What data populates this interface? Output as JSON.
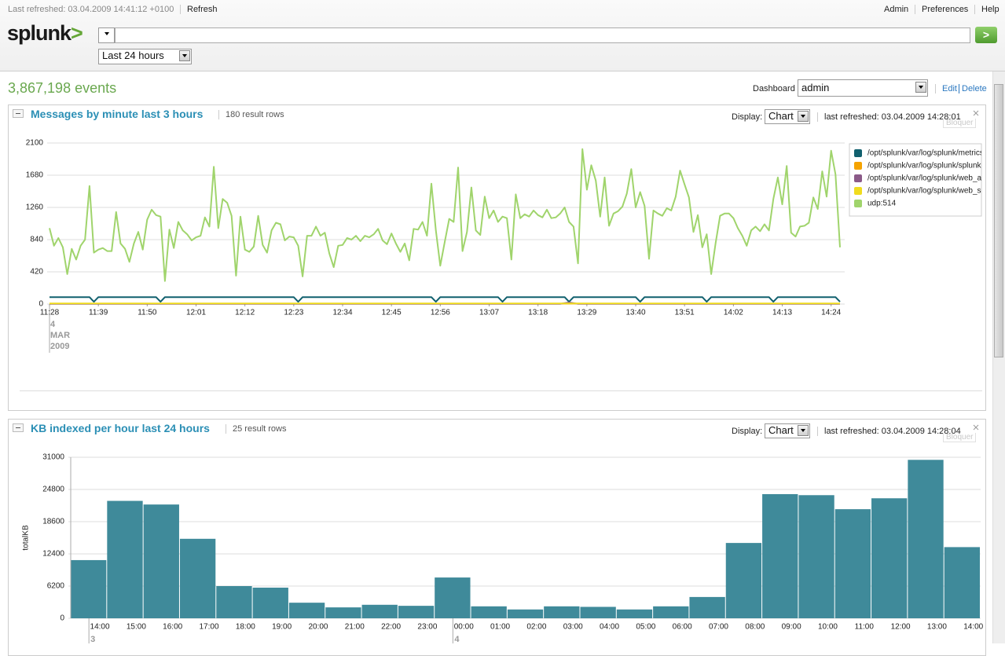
{
  "header": {
    "last_refreshed": "Last refreshed: 03.04.2009 14:41:12 +0100",
    "refresh": "Refresh",
    "menu": [
      "Admin",
      "Preferences",
      "Help"
    ],
    "logo": {
      "text": "splunk",
      "mark": ">"
    },
    "search_button": ">",
    "time_range": "Last 24 hours"
  },
  "events": "3,867,198 events",
  "dashboard": {
    "label": "Dashboard",
    "selected": "admin",
    "edit": "Edit",
    "delete": "Delete"
  },
  "panels": [
    {
      "title": "Messages by minute last 3 hours",
      "rows": "180 result rows",
      "display_label": "Display:",
      "display": "Chart",
      "refreshed": "last refreshed: 03.04.2009 14:28:01",
      "lock": "Bloquer"
    },
    {
      "title": "KB indexed per hour last 24 hours",
      "rows": "25 result rows",
      "display_label": "Display:",
      "display": "Chart",
      "refreshed": "last refreshed: 03.04.2009 14:28:04",
      "lock": "Bloquer"
    }
  ],
  "chart_data": [
    {
      "type": "line",
      "xlim": [
        0,
        178
      ],
      "xticks": [
        {
          "value": 0,
          "label": "11:28"
        },
        {
          "value": 11,
          "label": "11:39"
        },
        {
          "value": 22,
          "label": "11:50"
        },
        {
          "value": 33,
          "label": "12:01"
        },
        {
          "value": 44,
          "label": "12:12"
        },
        {
          "value": 55,
          "label": "12:23"
        },
        {
          "value": 66,
          "label": "12:34"
        },
        {
          "value": 77,
          "label": "12:45"
        },
        {
          "value": 88,
          "label": "12:56"
        },
        {
          "value": 99,
          "label": "13:07"
        },
        {
          "value": 110,
          "label": "13:18"
        },
        {
          "value": 121,
          "label": "13:29"
        },
        {
          "value": 132,
          "label": "13:40"
        },
        {
          "value": 143,
          "label": "13:51"
        },
        {
          "value": 154,
          "label": "14:02"
        },
        {
          "value": 165,
          "label": "14:13"
        },
        {
          "value": 176,
          "label": "14:24"
        }
      ],
      "date_label": [
        "4",
        "MAR",
        "2009"
      ],
      "ylim": [
        0,
        2100
      ],
      "yticks": [
        0,
        420,
        840,
        1260,
        1680,
        2100
      ],
      "grid": true,
      "legend": "right",
      "series": [
        {
          "name": "/opt/splunk/var/log/splunk/metrics",
          "color": "#11606e",
          "x": [
            0,
            9,
            10,
            11,
            24,
            25,
            26,
            55,
            56,
            57,
            86,
            87,
            88,
            101,
            102,
            103,
            116,
            117,
            118,
            132,
            133,
            134,
            147,
            148,
            149,
            162,
            163,
            164,
            177,
            178
          ],
          "values": [
            90,
            90,
            30,
            90,
            90,
            30,
            90,
            90,
            30,
            90,
            90,
            30,
            90,
            90,
            30,
            90,
            90,
            30,
            90,
            90,
            30,
            90,
            90,
            30,
            90,
            90,
            30,
            90,
            90,
            30
          ]
        },
        {
          "name": "/opt/splunk/var/log/splunk/splunk",
          "color": "#f5a300",
          "x": [
            0,
            178
          ],
          "values": [
            5,
            5
          ]
        },
        {
          "name": "/opt/splunk/var/log/splunk/web_a",
          "color": "#8b5a88",
          "x": [
            0,
            115,
            117,
            119,
            178
          ],
          "values": [
            2,
            2,
            20,
            2,
            2
          ]
        },
        {
          "name": "/opt/splunk/var/log/splunk/web_s",
          "color": "#f0dc1e",
          "x": [
            0,
            178
          ],
          "values": [
            8,
            8
          ]
        },
        {
          "name": "udp:514",
          "color": "#a0d46c",
          "x": [
            0,
            1,
            2,
            3,
            4,
            5,
            6,
            7,
            8,
            9,
            10,
            11,
            12,
            13,
            14,
            15,
            16,
            17,
            18,
            19,
            20,
            21,
            22,
            23,
            24,
            25,
            26,
            27,
            28,
            29,
            30,
            31,
            32,
            33,
            34,
            35,
            36,
            37,
            38,
            39,
            40,
            41,
            42,
            43,
            44,
            45,
            46,
            47,
            48,
            49,
            50,
            51,
            52,
            53,
            54,
            55,
            56,
            57,
            58,
            59,
            60,
            61,
            62,
            63,
            64,
            65,
            66,
            67,
            68,
            69,
            70,
            71,
            72,
            73,
            74,
            75,
            76,
            77,
            78,
            79,
            80,
            81,
            82,
            83,
            84,
            85,
            86,
            87,
            88,
            89,
            90,
            91,
            92,
            93,
            94,
            95,
            96,
            97,
            98,
            99,
            100,
            101,
            102,
            103,
            104,
            105,
            106,
            107,
            108,
            109,
            110,
            111,
            112,
            113,
            114,
            115,
            116,
            117,
            118,
            119,
            120,
            121,
            122,
            123,
            124,
            125,
            126,
            127,
            128,
            129,
            130,
            131,
            132,
            133,
            134,
            135,
            136,
            137,
            138,
            139,
            140,
            141,
            142,
            143,
            144,
            145,
            146,
            147,
            148,
            149,
            150,
            151,
            152,
            153,
            154,
            155,
            156,
            157,
            158,
            159,
            160,
            161,
            162,
            163,
            164,
            165,
            166,
            167,
            168,
            169,
            170,
            171,
            172,
            173,
            174,
            175,
            176,
            177,
            178
          ],
          "values": [
            990,
            760,
            860,
            740,
            390,
            720,
            580,
            760,
            840,
            1540,
            670,
            710,
            730,
            690,
            690,
            1200,
            790,
            720,
            550,
            790,
            940,
            710,
            1100,
            1230,
            1160,
            1140,
            300,
            970,
            730,
            1070,
            960,
            910,
            830,
            870,
            890,
            1130,
            1010,
            1790,
            990,
            1370,
            1320,
            1150,
            370,
            1140,
            710,
            680,
            750,
            1150,
            770,
            670,
            960,
            1060,
            1040,
            830,
            880,
            870,
            760,
            360,
            890,
            890,
            1010,
            890,
            930,
            660,
            480,
            760,
            770,
            860,
            840,
            890,
            820,
            890,
            870,
            910,
            980,
            830,
            780,
            920,
            790,
            680,
            790,
            570,
            980,
            970,
            1070,
            890,
            1570,
            960,
            500,
            810,
            1110,
            1070,
            1780,
            690,
            940,
            1520,
            960,
            900,
            1400,
            1120,
            1220,
            1070,
            1140,
            1120,
            580,
            1430,
            1120,
            1170,
            1140,
            1220,
            1160,
            1130,
            1230,
            1120,
            1130,
            1180,
            1260,
            1070,
            1010,
            530,
            2020,
            1490,
            1810,
            1610,
            1140,
            1650,
            1020,
            1180,
            1210,
            1270,
            1440,
            1760,
            1260,
            1460,
            1280,
            590,
            1220,
            1180,
            1150,
            1250,
            1220,
            1400,
            1740,
            1560,
            1390,
            940,
            1160,
            740,
            910,
            390,
            800,
            1150,
            1180,
            1180,
            1120,
            990,
            890,
            760,
            960,
            1010,
            950,
            1040,
            960,
            1370,
            1650,
            1300,
            1800,
            930,
            880,
            1010,
            1020,
            1060,
            1390,
            1240,
            1730,
            1400,
            2000,
            1690,
            740
          ]
        }
      ]
    },
    {
      "type": "bar",
      "ylabel": "totalKB",
      "categories": [
        "14:00",
        "15:00",
        "16:00",
        "17:00",
        "18:00",
        "19:00",
        "20:00",
        "21:00",
        "22:00",
        "23:00",
        "00:00",
        "01:00",
        "02:00",
        "03:00",
        "04:00",
        "05:00",
        "06:00",
        "07:00",
        "08:00",
        "09:00",
        "10:00",
        "11:00",
        "12:00",
        "13:00",
        "14:00"
      ],
      "values": [
        11200,
        22600,
        21900,
        15300,
        6200,
        5900,
        3000,
        2100,
        2600,
        2400,
        7850,
        2300,
        1700,
        2300,
        2200,
        1700,
        2300,
        4100,
        14500,
        23900,
        23700,
        21000,
        23100,
        30500,
        13700
      ],
      "color": "#3f8a9a",
      "date_labels": [
        "3",
        "4"
      ],
      "ylim": [
        0,
        31000
      ],
      "yticks": [
        0,
        6200,
        12400,
        18600,
        24800,
        31000
      ],
      "grid": true
    }
  ]
}
